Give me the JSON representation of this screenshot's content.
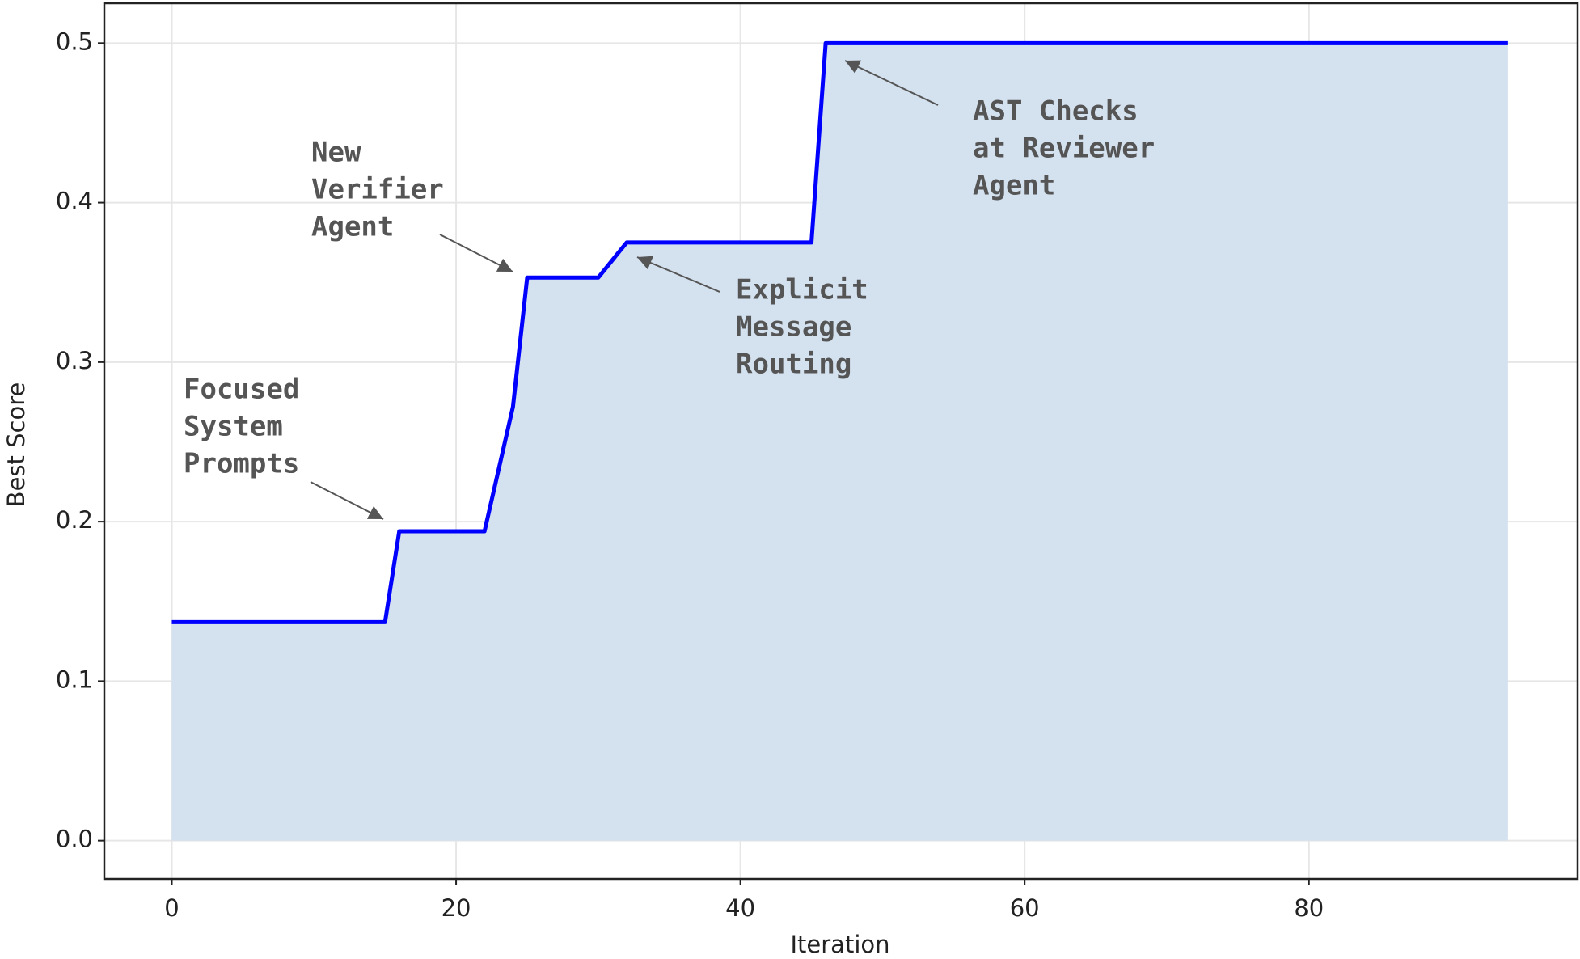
{
  "chart_data": {
    "type": "line",
    "x_label": "Iteration",
    "y_label": "Best Score",
    "series": [
      {
        "name": "Best Score",
        "color": "#0000ff",
        "fill": "#d4e1ef",
        "x": [
          0,
          15,
          16,
          22,
          24,
          25,
          30,
          32,
          45,
          46,
          94
        ],
        "values": [
          0.137,
          0.137,
          0.194,
          0.194,
          0.272,
          0.353,
          0.353,
          0.375,
          0.375,
          0.5,
          0.5
        ]
      }
    ],
    "xlim": [
      -4.75,
      98.9
    ],
    "xticks": [
      0,
      20,
      40,
      60,
      80
    ],
    "ylim": [
      -0.024,
      0.525
    ],
    "yticks": [
      {
        "value": 0,
        "label": "0.0"
      },
      0.1,
      0.2,
      0.3,
      0.4,
      0.5
    ],
    "grid": true,
    "annotations": [
      {
        "lines": [
          "Focused",
          "System",
          "Prompts"
        ]
      },
      {
        "lines": [
          "New",
          "Verifier",
          "Agent"
        ]
      },
      {
        "lines": [
          "Explicit",
          "Message",
          "Routing"
        ]
      },
      {
        "lines": [
          "AST Checks",
          "at Reviewer",
          "Agent"
        ]
      }
    ]
  }
}
